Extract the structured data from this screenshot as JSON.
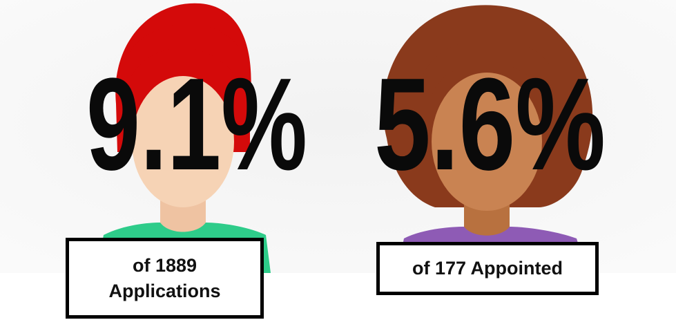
{
  "items": [
    {
      "percent": "9.1%",
      "caption": "of 1889 Applications"
    },
    {
      "percent": "5.6%",
      "caption": "of 177 Appointed"
    }
  ]
}
